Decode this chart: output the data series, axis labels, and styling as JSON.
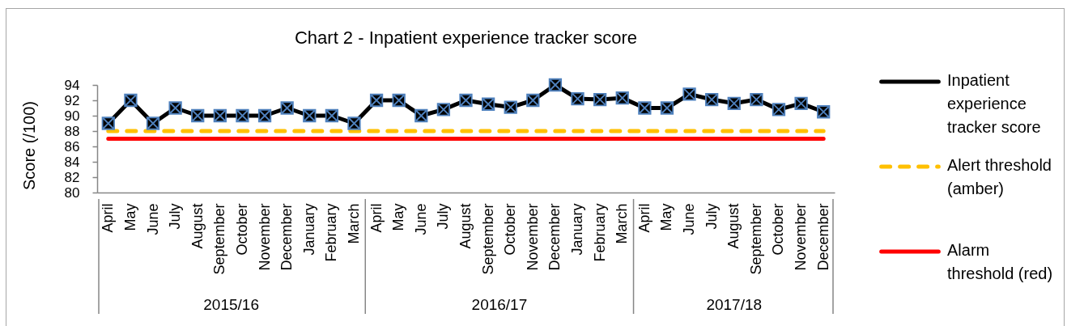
{
  "chart_data": {
    "type": "line",
    "title": "Chart 2 - Inpatient experience tracker score",
    "ylabel": "Score (/100)",
    "categories": [
      "April",
      "May",
      "June",
      "July",
      "August",
      "September",
      "October",
      "November",
      "December",
      "January",
      "February",
      "March",
      "April",
      "May",
      "June",
      "July",
      "August",
      "September",
      "October",
      "November",
      "December",
      "January",
      "February",
      "March",
      "April",
      "May",
      "June",
      "July",
      "August",
      "September",
      "October",
      "November",
      "December"
    ],
    "series": [
      {
        "name": "Inpatient experience tracker score",
        "color": "#000000",
        "values": [
          89,
          92,
          89,
          91,
          90,
          90,
          90,
          90,
          91,
          90,
          90,
          89,
          92,
          92,
          90,
          90.8,
          92,
          91.5,
          91.1,
          92,
          94,
          92.2,
          92.1,
          92.3,
          91,
          91,
          92.8,
          92.1,
          91.6,
          92.1,
          90.8,
          91.6,
          90.5
        ]
      }
    ],
    "ylim": [
      80,
      94
    ],
    "yticks": [
      80,
      82,
      84,
      86,
      88,
      90,
      92,
      94
    ],
    "ref_lines": [
      {
        "axis": "y",
        "value": 88,
        "label": "Alert threshold (amber)",
        "color": "#ffc000",
        "line_style": "dashed"
      },
      {
        "axis": "y",
        "value": 87,
        "label": "Alarm threshold (red)",
        "color": "#ff0000",
        "line_style": "solid"
      }
    ],
    "annotations": [
      "2015/16",
      "2016/17",
      "2017/18"
    ],
    "marker": "cross",
    "line_style": "solid",
    "legend": "right"
  }
}
